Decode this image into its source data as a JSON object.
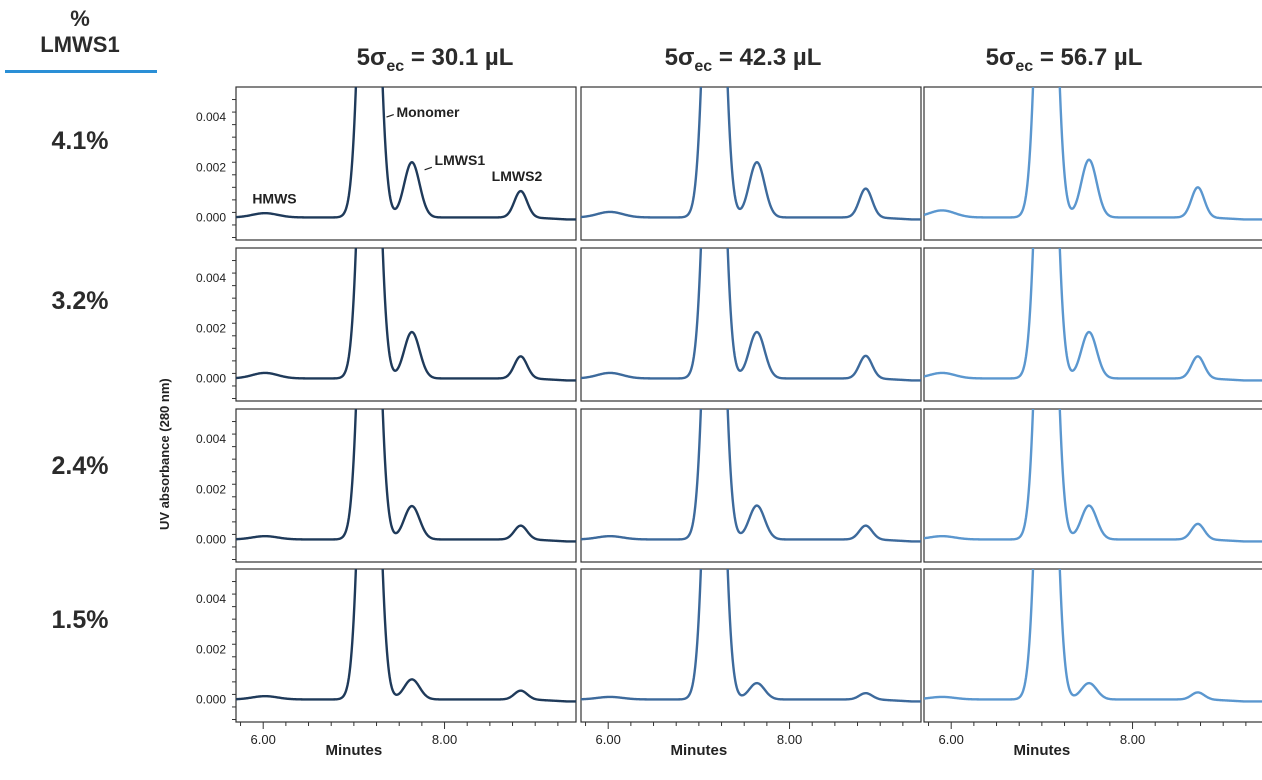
{
  "header": {
    "corner_symbol": "%",
    "corner_label": "LMWS1"
  },
  "columns": [
    {
      "prefix": "5σ",
      "subscript": "ec",
      "suffix": " = 30.1 µL"
    },
    {
      "prefix": "5σ",
      "subscript": "ec",
      "suffix": " = 42.3 µL"
    },
    {
      "prefix": "5σ",
      "subscript": "ec",
      "suffix": " = 56.7 µL"
    }
  ],
  "rows": [
    "4.1%",
    "3.2%",
    "2.4%",
    "1.5%"
  ],
  "colors": {
    "col1": "#1f3a5a",
    "col2": "#3d6a9c",
    "col3": "#5b97cf",
    "accent_rule": "#2a8fd6"
  },
  "chart_data": {
    "type": "line",
    "title": "",
    "xlabel": "Minutes",
    "ylabel": "UV absorbance (280 nm)",
    "xlim": [
      5.7,
      9.45
    ],
    "ylim": [
      -0.0009,
      0.0052
    ],
    "x_ticks": [
      "6.00",
      "8.00"
    ],
    "y_ticks": [
      "0.004",
      "0.002",
      "0.000"
    ],
    "peak_labels": [
      "Monomer",
      "LMWS1",
      "HMWS",
      "LMWS2"
    ],
    "column_shift_minutes": [
      0.0,
      0.0,
      -0.12
    ],
    "series": [
      {
        "column": 1,
        "row": 1,
        "lmws1_percent": 4.1,
        "hmws_height": 0.00017,
        "lmws1_height": 0.0022,
        "lmws2_height": 0.00105
      },
      {
        "column": 1,
        "row": 2,
        "lmws1_percent": 3.2,
        "hmws_height": 0.00022,
        "lmws1_height": 0.00185,
        "lmws2_height": 0.00088
      },
      {
        "column": 1,
        "row": 3,
        "lmws1_percent": 2.4,
        "hmws_height": 0.00013,
        "lmws1_height": 0.00133,
        "lmws2_height": 0.00055
      },
      {
        "column": 1,
        "row": 4,
        "lmws1_percent": 1.5,
        "hmws_height": 0.00013,
        "lmws1_height": 0.0008,
        "lmws2_height": 0.00035
      },
      {
        "column": 2,
        "row": 1,
        "lmws1_percent": 4.1,
        "hmws_height": 0.00022,
        "lmws1_height": 0.0022,
        "lmws2_height": 0.00115
      },
      {
        "column": 2,
        "row": 2,
        "lmws1_percent": 3.2,
        "hmws_height": 0.00022,
        "lmws1_height": 0.00185,
        "lmws2_height": 0.0009
      },
      {
        "column": 2,
        "row": 3,
        "lmws1_percent": 2.4,
        "hmws_height": 0.00013,
        "lmws1_height": 0.00135,
        "lmws2_height": 0.00055
      },
      {
        "column": 2,
        "row": 4,
        "lmws1_percent": 1.5,
        "hmws_height": 0.0001,
        "lmws1_height": 0.00065,
        "lmws2_height": 0.00025
      },
      {
        "column": 3,
        "row": 1,
        "lmws1_percent": 4.1,
        "hmws_height": 0.00028,
        "lmws1_height": 0.0023,
        "lmws2_height": 0.0012
      },
      {
        "column": 3,
        "row": 2,
        "lmws1_percent": 3.2,
        "hmws_height": 0.00022,
        "lmws1_height": 0.00185,
        "lmws2_height": 0.00088
      },
      {
        "column": 3,
        "row": 3,
        "lmws1_percent": 2.4,
        "hmws_height": 0.00013,
        "lmws1_height": 0.00135,
        "lmws2_height": 0.00062
      },
      {
        "column": 3,
        "row": 4,
        "lmws1_percent": 1.5,
        "hmws_height": 0.0001,
        "lmws1_height": 0.00065,
        "lmws2_height": 0.00028
      }
    ]
  }
}
